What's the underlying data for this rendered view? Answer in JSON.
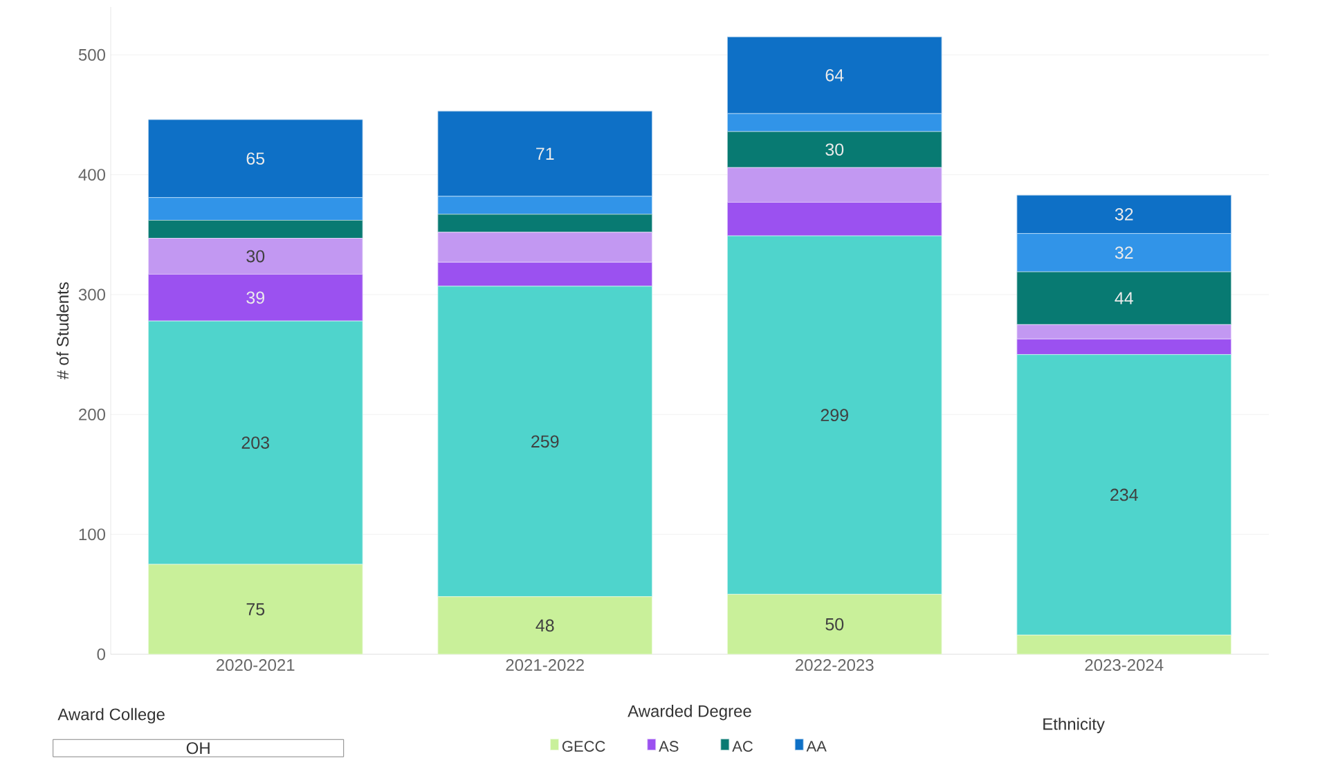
{
  "chart_data": {
    "type": "bar",
    "stacked": true,
    "ylabel": "# of Students",
    "legend_title": "Awarded Degree",
    "categories": [
      "2020-2021",
      "2021-2022",
      "2022-2023",
      "2023-2024"
    ],
    "series": [
      {
        "name": "GECC",
        "color": "#c9f09a",
        "values": [
          75,
          48,
          50,
          16
        ],
        "value_labels": [
          "75",
          "48",
          "50",
          null
        ]
      },
      {
        "color": "#4fd4cc",
        "values": [
          203,
          259,
          299,
          234
        ],
        "value_labels": [
          "203",
          "259",
          "299",
          "234"
        ]
      },
      {
        "name": "AS",
        "color": "#9b51f0",
        "values": [
          39,
          20,
          28,
          13
        ],
        "value_labels": [
          "39",
          null,
          null,
          null
        ]
      },
      {
        "color": "#c298f2",
        "values": [
          30,
          25,
          29,
          12
        ],
        "value_labels": [
          "30",
          null,
          null,
          null
        ]
      },
      {
        "name": "AC",
        "color": "#087a72",
        "values": [
          15,
          15,
          30,
          44
        ],
        "value_labels": [
          null,
          null,
          "30",
          "44"
        ]
      },
      {
        "color": "#3194e8",
        "values": [
          19,
          15,
          15,
          32
        ],
        "value_labels": [
          null,
          null,
          null,
          "32"
        ]
      },
      {
        "name": "AA",
        "color": "#0e70c6",
        "values": [
          65,
          71,
          64,
          32
        ],
        "value_labels": [
          "65",
          "71",
          "64",
          "32"
        ]
      }
    ],
    "ylim": [
      0,
      540
    ],
    "yticks": [
      0,
      100,
      200,
      300,
      400,
      500
    ],
    "grid": "y",
    "legend": "bottom",
    "annotations": [
      "Award College",
      "OH",
      "Ethnicity"
    ]
  }
}
